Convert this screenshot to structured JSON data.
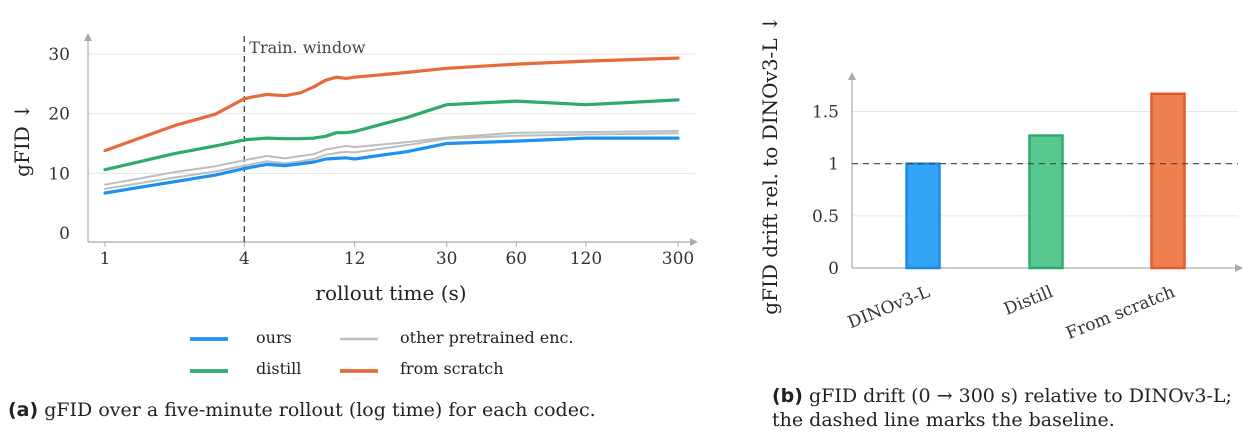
{
  "chart_data": [
    {
      "id": "a",
      "type": "line",
      "xlabel": "rollout time (s)",
      "ylabel": "gFID",
      "y_arrow": "↓",
      "x_scale": "log",
      "x_ticks": [
        1,
        4,
        12,
        30,
        60,
        120,
        300
      ],
      "y_ticks": [
        0,
        10,
        20,
        30
      ],
      "xlim": [
        1,
        300
      ],
      "ylim": [
        0,
        31
      ],
      "grid": "horizontal",
      "vline": {
        "x": 4,
        "style": "dashed",
        "label": "Train. window"
      },
      "series": [
        {
          "name": "from scratch",
          "color": "#e8693a",
          "width": 3.2,
          "x": [
            1,
            2,
            3,
            4,
            4.5,
            5,
            6,
            7,
            8,
            9,
            10,
            11,
            12,
            20,
            30,
            60,
            120,
            300
          ],
          "y": [
            13.8,
            18.0,
            19.9,
            22.5,
            22.9,
            23.2,
            23.0,
            23.5,
            24.5,
            25.6,
            26.1,
            25.9,
            26.1,
            26.9,
            27.6,
            28.3,
            28.8,
            29.3
          ]
        },
        {
          "name": "distill",
          "color": "#2eaa6a",
          "width": 3.2,
          "x": [
            1,
            2,
            3,
            4,
            5,
            6,
            7,
            8,
            9,
            10,
            11,
            12,
            20,
            30,
            60,
            120,
            300
          ],
          "y": [
            10.6,
            13.3,
            14.6,
            15.6,
            15.9,
            15.8,
            15.8,
            15.9,
            16.2,
            16.8,
            16.8,
            17.0,
            19.3,
            21.5,
            22.1,
            21.5,
            22.3
          ]
        },
        {
          "name": "other pretrained enc.",
          "color": "#bdbdbd",
          "width": 2,
          "x": [
            1,
            2,
            3,
            4,
            5,
            6,
            7,
            8,
            9,
            10,
            11,
            12,
            20,
            30,
            60,
            120,
            300
          ],
          "y": [
            8.1,
            10.2,
            11.2,
            12.2,
            12.9,
            12.5,
            12.9,
            13.2,
            14.0,
            14.3,
            14.6,
            14.4,
            15.2,
            16.0,
            16.8,
            16.9,
            17.1
          ]
        },
        {
          "name": "other pretrained enc.",
          "color": "#bdbdbd",
          "width": 2,
          "legend": false,
          "x": [
            1,
            2,
            3,
            4,
            5,
            6,
            7,
            8,
            9,
            10,
            11,
            12,
            20,
            30,
            60,
            120,
            300
          ],
          "y": [
            7.4,
            9.3,
            10.3,
            11.3,
            12.0,
            11.7,
            12.0,
            12.4,
            13.1,
            13.4,
            13.6,
            13.5,
            14.7,
            15.8,
            16.3,
            16.5,
            16.7
          ]
        },
        {
          "name": "ours",
          "color": "#1e90f0",
          "width": 3.2,
          "x": [
            1,
            2,
            3,
            4,
            5,
            6,
            7,
            8,
            9,
            10,
            11,
            12,
            20,
            30,
            60,
            120,
            300
          ],
          "y": [
            6.7,
            8.6,
            9.7,
            10.8,
            11.5,
            11.3,
            11.6,
            11.9,
            12.4,
            12.5,
            12.6,
            12.4,
            13.6,
            15.0,
            15.4,
            15.9,
            15.9
          ]
        }
      ],
      "legend_order": [
        "ours",
        "other pretrained enc.",
        "distill",
        "from scratch"
      ],
      "legend_placement": "below"
    },
    {
      "id": "b",
      "type": "bar",
      "ylabel": "gFID drift rel. to DINOv3-L",
      "y_arrow": "↓",
      "categories": [
        "DINOv3-L",
        "Distill",
        "From scratch"
      ],
      "values": [
        1.0,
        1.27,
        1.67
      ],
      "fill_colors": [
        "#33a4f5",
        "#58c891",
        "#ee8050"
      ],
      "edge_colors": [
        "#1e88e5",
        "#2eaa6a",
        "#e35a2a"
      ],
      "y_ticks": [
        0,
        0.5,
        1,
        1.5
      ],
      "y_tick_labels": [
        "0",
        "0.5",
        "1",
        "1.5"
      ],
      "ylim": [
        0,
        1.85
      ],
      "grid": "horizontal",
      "hline": {
        "y": 1,
        "style": "dashed"
      }
    }
  ],
  "captions": {
    "a": {
      "tag": "(a)",
      "text": "gFID over a five-minute rollout (log time) for each codec."
    },
    "b": {
      "tag": "(b)",
      "text": "gFID drift (0 → 300 s) relative to DINOv3-L; the dashed line marks the baseline."
    }
  }
}
